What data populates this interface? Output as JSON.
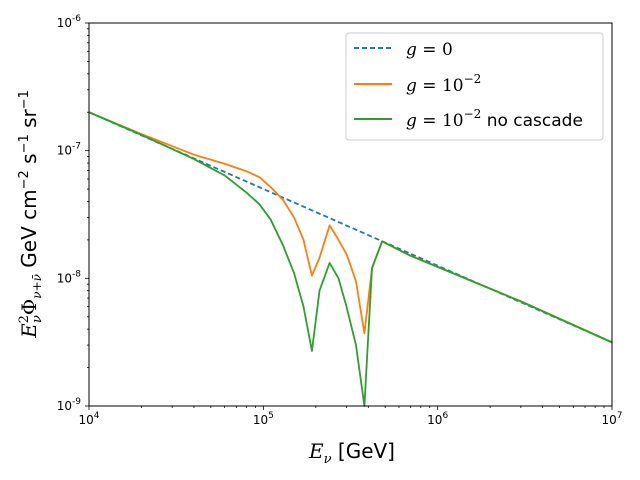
{
  "chart_data": {
    "type": "line",
    "title": "",
    "xscale": "log",
    "yscale": "log",
    "xlim": [
      10000,
      10000000
    ],
    "ylim": [
      1e-09,
      1e-06
    ],
    "grid": false,
    "legend_position": "top-right",
    "xlabel": {
      "var": "E",
      "sub": "ν",
      "unit": " [GeV]"
    },
    "ylabel": {
      "var": "E",
      "sup": "2",
      "sub": "ν",
      "phi": "Φ",
      "phisub": "ν+ν̄",
      "unit": " GeV cm",
      "exp1": "−2",
      "s": " s",
      "exp2": "−1",
      "sr": " sr",
      "exp3": "−1"
    },
    "xticks": [
      {
        "value": 10000,
        "base": "10",
        "exp": "4"
      },
      {
        "value": 100000,
        "base": "10",
        "exp": "5"
      },
      {
        "value": 1000000,
        "base": "10",
        "exp": "6"
      },
      {
        "value": 10000000,
        "base": "10",
        "exp": "7"
      }
    ],
    "yticks": [
      {
        "value": 1e-09,
        "base": "10",
        "exp": "-9"
      },
      {
        "value": 1e-08,
        "base": "10",
        "exp": "-8"
      },
      {
        "value": 1e-07,
        "base": "10",
        "exp": "-7"
      },
      {
        "value": 1e-06,
        "base": "10",
        "exp": "-6"
      }
    ],
    "series": [
      {
        "name": "g = 0",
        "legend": {
          "g": "g",
          "eq": " = ",
          "val": "0",
          "exp": "",
          "suffix": ""
        },
        "color": "#1f77b4",
        "dashed": true,
        "x": [
          10000,
          10000000
        ],
        "y": [
          2e-07,
          3.15e-09
        ]
      },
      {
        "name": "g = 10^-2",
        "legend": {
          "g": "g",
          "eq": " = ",
          "val": "10",
          "exp": "−2",
          "suffix": ""
        },
        "color": "#ff7f0e",
        "dashed": false,
        "x": [
          10000,
          20000,
          40000,
          60000,
          80000,
          95000,
          110000,
          130000,
          150000,
          170000,
          190000,
          210000,
          240000,
          270000,
          300000,
          340000,
          380000,
          420000,
          480000,
          700000,
          1000000,
          3000000,
          10000000
        ],
        "y": [
          2e-07,
          1.35e-07,
          9.3e-08,
          7.9e-08,
          6.9e-08,
          6.2e-08,
          5.2e-08,
          4.1e-08,
          3e-08,
          2e-08,
          1.05e-08,
          1.45e-08,
          2.6e-08,
          2e-08,
          1.55e-08,
          9.5e-09,
          3.7e-09,
          1.2e-08,
          1.95e-08,
          1.5e-08,
          1.23e-08,
          6.6e-09,
          3.15e-09
        ]
      },
      {
        "name": "g = 10^-2 no cascade",
        "legend": {
          "g": "g",
          "eq": " = ",
          "val": "10",
          "exp": "−2",
          "suffix": " no cascade"
        },
        "color": "#2ca02c",
        "dashed": false,
        "x": [
          10000,
          20000,
          40000,
          60000,
          80000,
          95000,
          110000,
          130000,
          150000,
          170000,
          190000,
          210000,
          240000,
          270000,
          300000,
          340000,
          380000,
          420000,
          480000,
          700000,
          1000000,
          3000000,
          10000000
        ],
        "y": [
          2e-07,
          1.33e-07,
          8.6e-08,
          6.4e-08,
          4.7e-08,
          3.8e-08,
          2.9e-08,
          1.8e-08,
          1.1e-08,
          6e-09,
          2.7e-09,
          8e-09,
          1.32e-08,
          1e-08,
          6e-09,
          3e-09,
          1e-09,
          1.2e-08,
          1.95e-08,
          1.5e-08,
          1.23e-08,
          6.6e-09,
          3.15e-09
        ]
      }
    ]
  }
}
